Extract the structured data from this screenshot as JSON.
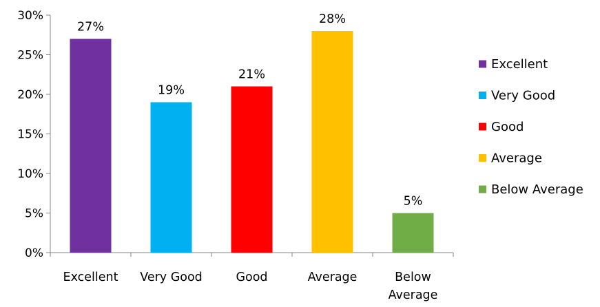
{
  "chart_data": {
    "type": "bar",
    "categories": [
      [
        "Excellent"
      ],
      [
        "Very Good"
      ],
      [
        "Good"
      ],
      [
        "Average"
      ],
      [
        "Below",
        "Average"
      ]
    ],
    "values": [
      27,
      19,
      21,
      28,
      5
    ],
    "data_labels": [
      "27%",
      "19%",
      "21%",
      "28%",
      "5%"
    ],
    "colors": [
      "#7030A0",
      "#00B0F0",
      "#FF0000",
      "#FFC000",
      "#70AD47"
    ],
    "ylim": [
      0,
      30
    ],
    "yticks": [
      0,
      5,
      10,
      15,
      20,
      25,
      30
    ],
    "ytick_labels": [
      "0%",
      "5%",
      "10%",
      "15%",
      "20%",
      "25%",
      "30%"
    ],
    "grid": false,
    "legend": {
      "position": "right",
      "entries": [
        "Excellent",
        "Very Good",
        "Good",
        "Average",
        "Below Average"
      ]
    },
    "title": "",
    "xlabel": "",
    "ylabel": ""
  }
}
